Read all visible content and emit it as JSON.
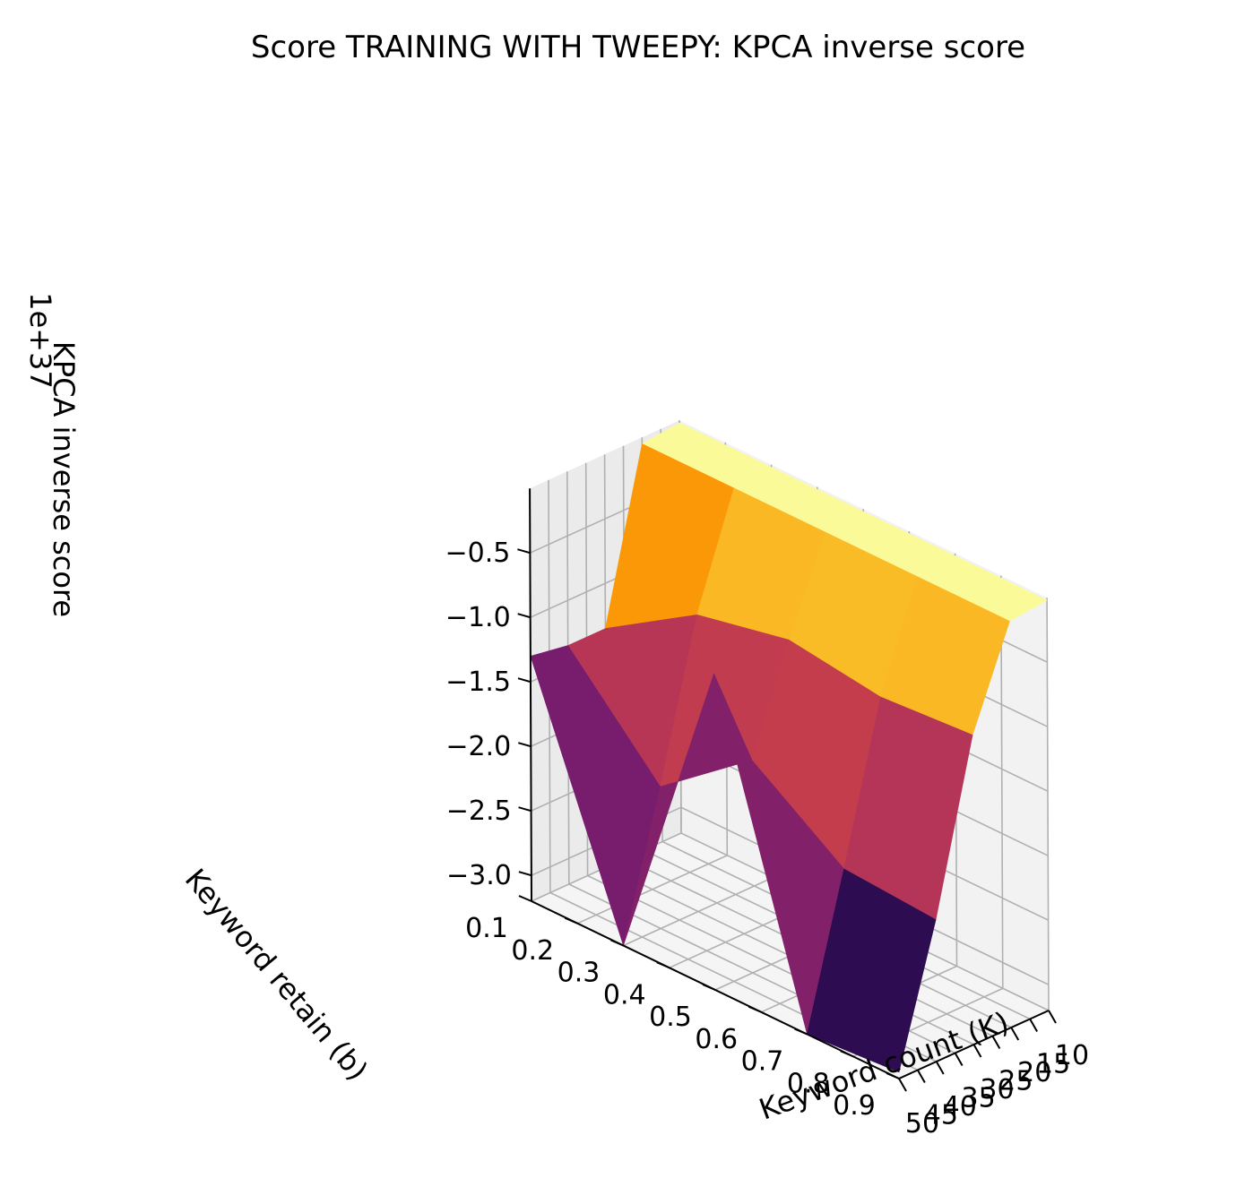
{
  "chart_data": {
    "type": "surface3d",
    "title": "Score TRAINING WITH TWEEPY: KPCA inverse score",
    "xlabel": "Keyword count (K)",
    "ylabel": "Keyword retain (b)",
    "zlabel": "KPCA inverse score",
    "z_offset_text": "1e+37",
    "colormap": "inferno",
    "x": [
      10,
      15,
      20,
      25,
      30,
      35,
      40,
      45,
      50
    ],
    "y": [
      0.1,
      0.2,
      0.3,
      0.4,
      0.5,
      0.6,
      0.7,
      0.8,
      0.9
    ],
    "x_ticks": [
      {
        "value": 10,
        "label": "10"
      },
      {
        "value": 15,
        "label": "15"
      },
      {
        "value": 20,
        "label": "20"
      },
      {
        "value": 25,
        "label": "25"
      },
      {
        "value": 30,
        "label": "30"
      },
      {
        "value": 35,
        "label": "35"
      },
      {
        "value": 40,
        "label": "40"
      },
      {
        "value": 45,
        "label": "45"
      },
      {
        "value": 50,
        "label": "50"
      }
    ],
    "y_ticks": [
      {
        "value": 0.1,
        "label": "0.1"
      },
      {
        "value": 0.2,
        "label": "0.2"
      },
      {
        "value": 0.3,
        "label": "0.3"
      },
      {
        "value": 0.4,
        "label": "0.4"
      },
      {
        "value": 0.5,
        "label": "0.5"
      },
      {
        "value": 0.6,
        "label": "0.6"
      },
      {
        "value": 0.7,
        "label": "0.7"
      },
      {
        "value": 0.8,
        "label": "0.8"
      },
      {
        "value": 0.9,
        "label": "0.9"
      }
    ],
    "z_ticks": [
      {
        "value": -0.5,
        "label": "−0.5"
      },
      {
        "value": -1.0,
        "label": "−1.0"
      },
      {
        "value": -1.5,
        "label": "−1.5"
      },
      {
        "value": -2.0,
        "label": "−2.0"
      },
      {
        "value": -2.5,
        "label": "−2.5"
      },
      {
        "value": -3.0,
        "label": "−3.0"
      }
    ],
    "grid": true,
    "surface": {
      "x_knots": [
        10,
        20,
        30,
        40,
        50
      ],
      "y_knots": [
        0.1,
        0.3,
        0.5,
        0.7,
        0.9
      ],
      "z": [
        [
          -0.02,
          -0.02,
          -0.02,
          -0.02,
          -0.02
        ],
        [
          -0.05,
          -0.05,
          -0.05,
          -0.05,
          -0.05
        ],
        [
          -1.35,
          -0.9,
          -0.75,
          -0.85,
          -0.8
        ],
        [
          -1.35,
          -2.1,
          -1.55,
          -2.05,
          -2.1
        ],
        [
          -1.3,
          -3.2,
          -0.75,
          -3.2,
          -3.15
        ]
      ]
    }
  }
}
